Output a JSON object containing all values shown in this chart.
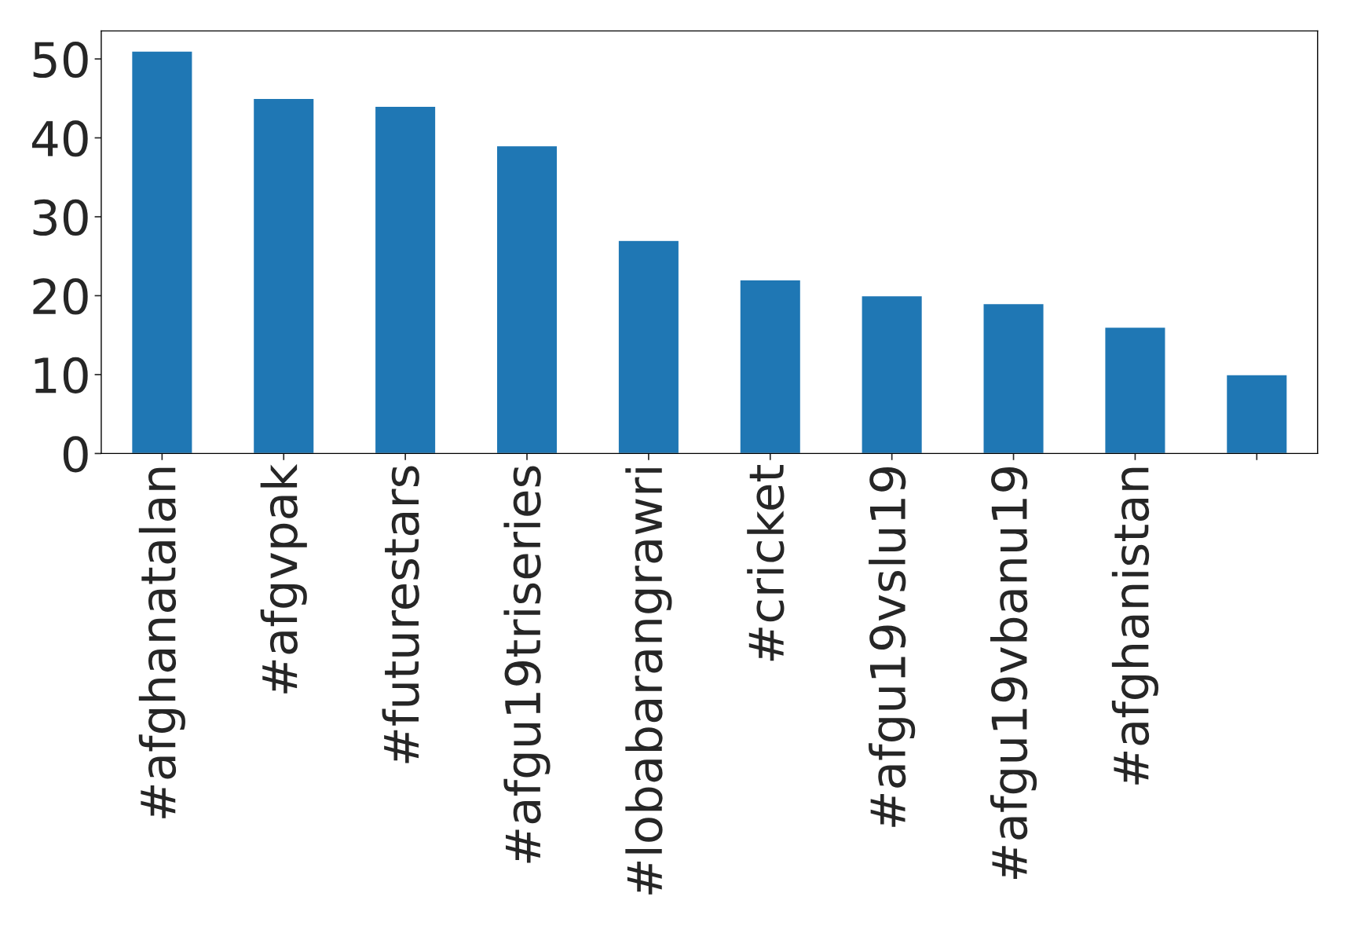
{
  "chart_data": {
    "type": "bar",
    "categories": [
      "#afghanatalan",
      "#afgvpak",
      "#futurestars",
      "#afgu19triseries",
      "#lobabarangrawri",
      "#cricket",
      "#afgu19vslu19",
      "#afgu19vbanu19",
      "#afghanistan",
      null
    ],
    "values": [
      51,
      45,
      44,
      39,
      27,
      22,
      20,
      19,
      16,
      10
    ],
    "color": "#1f77b4",
    "ylim": [
      0,
      53.55
    ],
    "yticks": [
      0,
      10,
      20,
      30,
      40,
      50
    ],
    "grid": false,
    "legend": false
  }
}
